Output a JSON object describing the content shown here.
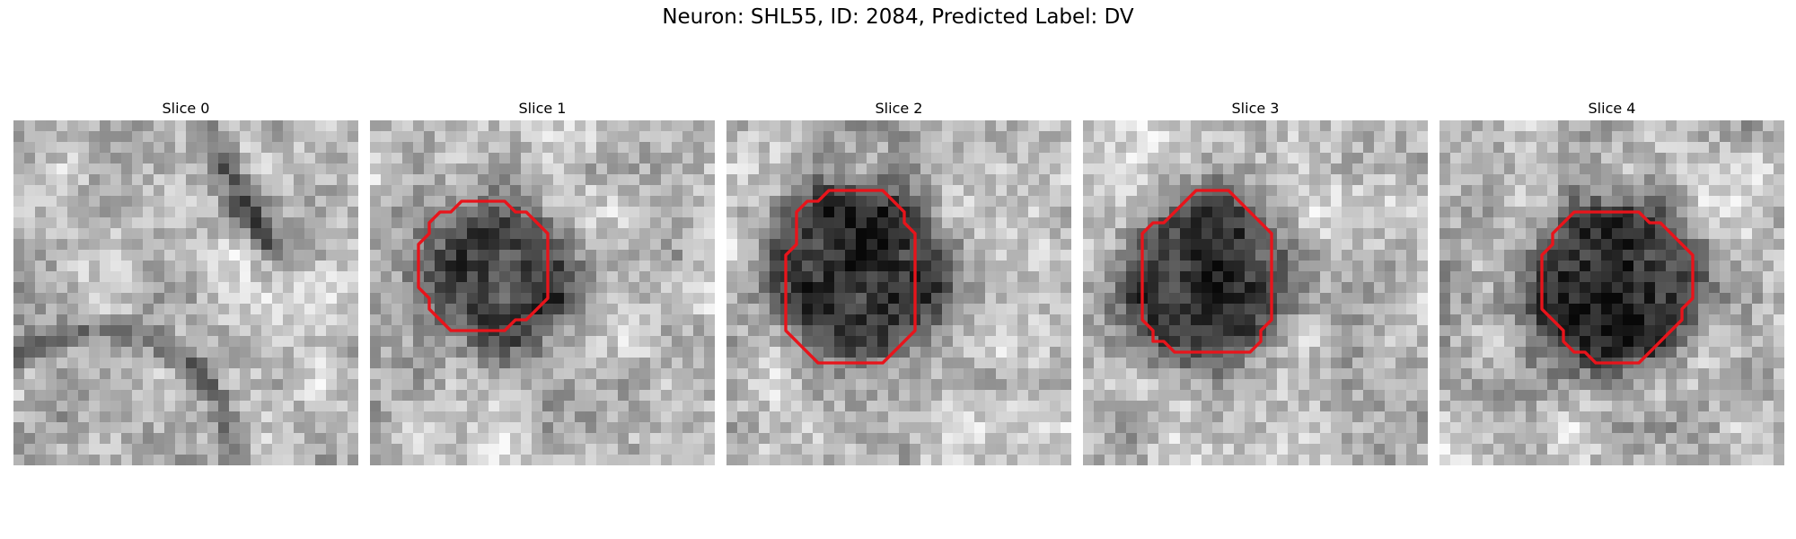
{
  "figure": {
    "title": "Neuron: SHL55, ID: 2084, Predicted Label: DV"
  },
  "colors": {
    "contour": "#e8141b",
    "background": "#ffffff",
    "colormap": "grayscale"
  },
  "slices": [
    {
      "title": "Slice 0",
      "has_contour": false
    },
    {
      "title": "Slice 1",
      "has_contour": true
    },
    {
      "title": "Slice 2",
      "has_contour": true
    },
    {
      "title": "Slice 3",
      "has_contour": true
    },
    {
      "title": "Slice 4",
      "has_contour": true
    }
  ]
}
